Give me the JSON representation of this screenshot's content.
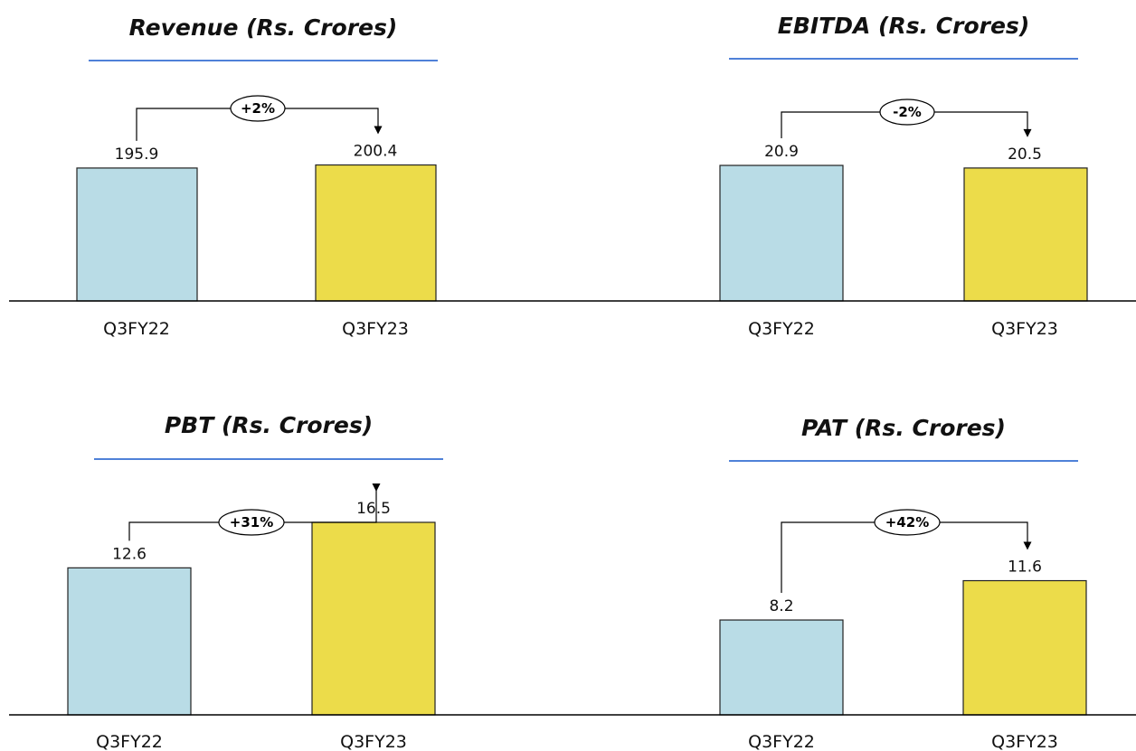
{
  "colors": {
    "bar_q3fy22": "#b9dce6",
    "bar_q3fy23": "#ecdc4a",
    "title_underline": "#4f81d8",
    "bar_outline": "#222222"
  },
  "chart_data": [
    {
      "type": "bar",
      "title": "Revenue (Rs. Crores)",
      "categories": [
        "Q3FY22",
        "Q3FY23"
      ],
      "values": [
        195.9,
        200.4
      ],
      "data_labels": [
        "195.9",
        "200.4"
      ],
      "change_label": "+2%"
    },
    {
      "type": "bar",
      "title": "EBITDA (Rs. Crores)",
      "categories": [
        "Q3FY22",
        "Q3FY23"
      ],
      "values": [
        20.9,
        20.5
      ],
      "data_labels": [
        "20.9",
        "20.5"
      ],
      "change_label": "-2%"
    },
    {
      "type": "bar",
      "title": "PBT (Rs. Crores)",
      "categories": [
        "Q3FY22",
        "Q3FY23"
      ],
      "values": [
        12.6,
        16.5
      ],
      "data_labels": [
        "12.6",
        "16.5"
      ],
      "change_label": "+31%"
    },
    {
      "type": "bar",
      "title": "PAT (Rs. Crores)",
      "categories": [
        "Q3FY22",
        "Q3FY23"
      ],
      "values": [
        8.2,
        11.6
      ],
      "data_labels": [
        "8.2",
        "11.6"
      ],
      "change_label": "+42%"
    }
  ]
}
